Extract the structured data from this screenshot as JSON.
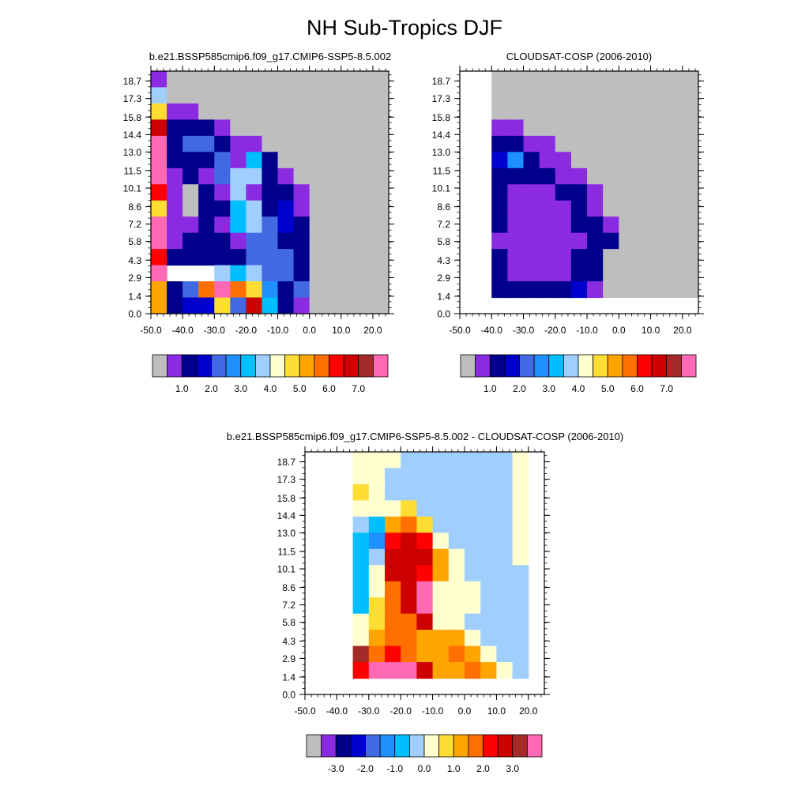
{
  "figure_title": "NH Sub-Tropics DJF",
  "chart_data": [
    {
      "type": "heatmap",
      "title": "b.e21.BSSP585cmip6.f09_g17.CMIP6-SSP5-8.5.002",
      "xlabel": "",
      "ylabel": "",
      "xlim": [
        -50,
        25
      ],
      "ylim": [
        0,
        19.5
      ],
      "x_ticks": [
        "-50.0",
        "-40.0",
        "-30.0",
        "-20.0",
        "-10.0",
        "0.0",
        "10.0",
        "20.0"
      ],
      "y_ticks": [
        "0.0",
        "1.4",
        "2.9",
        "4.3",
        "5.8",
        "7.2",
        "8.6",
        "10.1",
        "11.5",
        "13.0",
        "14.4",
        "15.8",
        "17.3",
        "18.7"
      ],
      "colorbar_labels": [
        "1.0",
        "2.0",
        "3.0",
        "4.0",
        "5.0",
        "6.0",
        "7.0"
      ],
      "colorbar_colors": [
        "#bebebe",
        "#8a2be2",
        "#00008b",
        "#0000cd",
        "#4169e1",
        "#1e90ff",
        "#00bfff",
        "#a0cfff",
        "#ffffd0",
        "#ffdd33",
        "#ffa500",
        "#ff7000",
        "#ff0000",
        "#cc0000",
        "#a52a2a",
        "#ff69b4"
      ]
    },
    {
      "type": "heatmap",
      "title": "CLOUDSAT-COSP (2006-2010)",
      "xlabel": "",
      "ylabel": "",
      "xlim": [
        -50,
        25
      ],
      "ylim": [
        0,
        19.5
      ],
      "x_ticks": [
        "-50.0",
        "-40.0",
        "-30.0",
        "-20.0",
        "-10.0",
        "0.0",
        "10.0",
        "20.0"
      ],
      "y_ticks": [
        "0.0",
        "1.4",
        "2.9",
        "4.3",
        "5.8",
        "7.2",
        "8.6",
        "10.1",
        "11.5",
        "13.0",
        "14.4",
        "15.8",
        "17.3",
        "18.7"
      ],
      "colorbar_labels": [
        "1.0",
        "2.0",
        "3.0",
        "4.0",
        "5.0",
        "6.0",
        "7.0"
      ],
      "colorbar_colors": [
        "#bebebe",
        "#8a2be2",
        "#00008b",
        "#0000cd",
        "#4169e1",
        "#1e90ff",
        "#00bfff",
        "#a0cfff",
        "#ffffd0",
        "#ffdd33",
        "#ffa500",
        "#ff7000",
        "#ff0000",
        "#cc0000",
        "#a52a2a",
        "#ff69b4"
      ]
    },
    {
      "type": "heatmap",
      "title": "b.e21.BSSP585cmip6.f09_g17.CMIP6-SSP5-8.5.002 - CLOUDSAT-COSP (2006-2010)",
      "xlabel": "",
      "ylabel": "",
      "xlim": [
        -50,
        25
      ],
      "ylim": [
        0,
        19.5
      ],
      "x_ticks": [
        "-50.0",
        "-40.0",
        "-30.0",
        "-20.0",
        "-10.0",
        "0.0",
        "10.0",
        "20.0"
      ],
      "y_ticks": [
        "0.0",
        "1.4",
        "2.9",
        "4.3",
        "5.8",
        "7.2",
        "8.6",
        "10.1",
        "11.5",
        "13.0",
        "14.4",
        "15.8",
        "17.3",
        "18.7"
      ],
      "colorbar_labels": [
        "-3.0",
        "-2.0",
        "-1.0",
        "0.0",
        "1.0",
        "2.0",
        "3.0"
      ],
      "colorbar_colors": [
        "#bebebe",
        "#8a2be2",
        "#00008b",
        "#0000cd",
        "#4169e1",
        "#1e90ff",
        "#00bfff",
        "#a0cfff",
        "#ffffd0",
        "#ffdd33",
        "#ffa500",
        "#ff7000",
        "#ff0000",
        "#cc0000",
        "#a52a2a",
        "#ff69b4"
      ]
    }
  ]
}
